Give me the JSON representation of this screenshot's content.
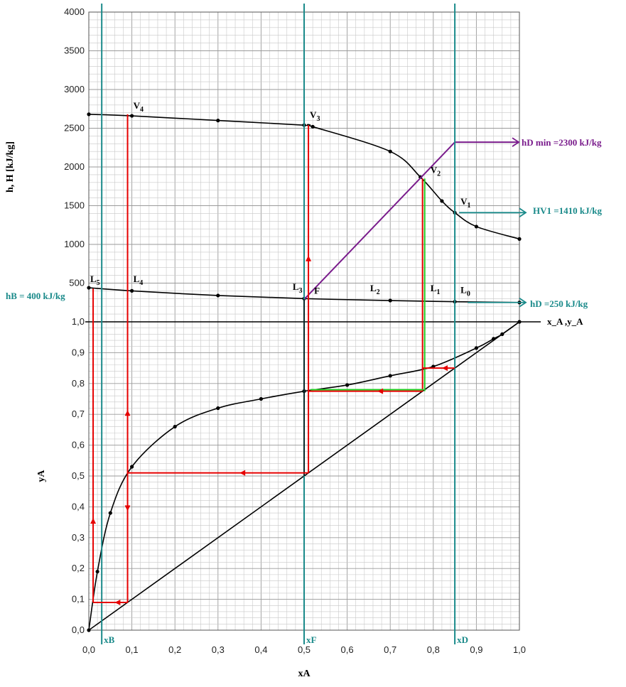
{
  "chart_data": [
    {
      "type": "line",
      "panel": "enthalpy-composition",
      "ylabel": "h, H [kJ/kg]",
      "xlabel": "x_A ,y_A",
      "xlim": [
        0,
        1
      ],
      "ylim": [
        0,
        4000
      ],
      "y_ticks": [
        "500",
        "1000",
        "1500",
        "2000",
        "2500",
        "3000",
        "3500",
        "4000"
      ],
      "grid": true,
      "series": [
        {
          "role": "saturated-vapor",
          "color": "#000000",
          "x": [
            0.0,
            0.1,
            0.3,
            0.5,
            0.52,
            0.7,
            0.77,
            0.82,
            0.85,
            0.9,
            1.0
          ],
          "y": [
            2680,
            2660,
            2600,
            2540,
            2520,
            2200,
            1870,
            1560,
            1410,
            1230,
            1070
          ]
        },
        {
          "role": "saturated-liquid",
          "color": "#000000",
          "x": [
            0.0,
            0.1,
            0.3,
            0.5,
            0.7,
            0.85,
            1.0
          ],
          "y": [
            440,
            400,
            340,
            300,
            275,
            260,
            250
          ]
        }
      ],
      "construction_lines": [
        {
          "color": "#7a1c8c",
          "x": [
            0.5,
            0.85,
            1.0
          ],
          "y": [
            290,
            2320,
            2320
          ]
        },
        {
          "color": "#e60000",
          "x": [
            0.09,
            0.09
          ],
          "y": [
            0,
            2680
          ]
        },
        {
          "color": "#e60000",
          "x": [
            0.51,
            0.51
          ],
          "y": [
            0,
            2540
          ]
        },
        {
          "color": "#e60000",
          "x": [
            0.01,
            0.01
          ],
          "y": [
            0,
            430
          ]
        },
        {
          "color": "#e60000",
          "x": [
            0.775,
            0.775
          ],
          "y": [
            0,
            1850
          ]
        },
        {
          "color": "#22cc22",
          "x": [
            0.777,
            0.777
          ],
          "y": [
            0,
            1850
          ]
        },
        {
          "color": "#000000",
          "x": [
            0.5,
            0.5
          ],
          "y": [
            0,
            290
          ]
        }
      ],
      "point_labels": [
        {
          "text": "V4",
          "x": 0.1,
          "y": 2680
        },
        {
          "text": "V3",
          "x": 0.51,
          "y": 2560
        },
        {
          "text": "V2",
          "x": 0.79,
          "y": 1850
        },
        {
          "text": "V1",
          "x": 0.86,
          "y": 1440
        },
        {
          "text": "L5",
          "x": 0.0,
          "y": 440
        },
        {
          "text": "L4",
          "x": 0.1,
          "y": 440
        },
        {
          "text": "L3",
          "x": 0.47,
          "y": 340
        },
        {
          "text": "F",
          "x": 0.52,
          "y": 290
        },
        {
          "text": "L2",
          "x": 0.65,
          "y": 320
        },
        {
          "text": "L1",
          "x": 0.79,
          "y": 320
        },
        {
          "text": "L0",
          "x": 0.86,
          "y": 300
        }
      ],
      "annotations": [
        {
          "text": "hD min =2300 kJ/kg",
          "color": "#7a1c8c"
        },
        {
          "text": "HV1 =1410 kJ/kg",
          "color": "#1a8a8a"
        },
        {
          "text": "hD =250 kJ/kg",
          "color": "#1a8a8a"
        },
        {
          "text": "hB = 400 kJ/kg",
          "color": "#1a8a8a"
        }
      ]
    },
    {
      "type": "line",
      "panel": "equilibrium-diagram",
      "ylabel": "yA",
      "xlabel": "xA",
      "xlim": [
        0,
        1
      ],
      "ylim": [
        0,
        1
      ],
      "x_ticks": [
        "0,0",
        "0,1",
        "0,2",
        "0,3",
        "0,4",
        "0,5",
        "0,6",
        "0,7",
        "0,8",
        "0,9",
        "1,0"
      ],
      "y_ticks": [
        "0,0",
        "0,1",
        "0,2",
        "0,3",
        "0,4",
        "0,5",
        "0,6",
        "0,7",
        "0,8",
        "0,9",
        "1,0"
      ],
      "grid": true,
      "series": [
        {
          "role": "equilibrium",
          "color": "#000000",
          "x": [
            0.0,
            0.02,
            0.05,
            0.1,
            0.2,
            0.3,
            0.4,
            0.5,
            0.6,
            0.7,
            0.8,
            0.9,
            0.94,
            0.96,
            1.0
          ],
          "y": [
            0.0,
            0.19,
            0.38,
            0.53,
            0.66,
            0.72,
            0.75,
            0.775,
            0.795,
            0.825,
            0.855,
            0.915,
            0.945,
            0.96,
            1.0
          ]
        },
        {
          "role": "diagonal",
          "color": "#000000",
          "x": [
            0.0,
            1.0
          ],
          "y": [
            0.0,
            1.0
          ]
        }
      ],
      "composition_markers": [
        {
          "text": "xB",
          "x": 0.03
        },
        {
          "text": "xF",
          "x": 0.5
        },
        {
          "text": "xD",
          "x": 0.85
        }
      ]
    }
  ],
  "colors": {
    "construction_red": "#e60000",
    "operating_purple": "#7a1c8c",
    "composition_teal": "#1a8a8a",
    "green_line": "#22cc22",
    "grid": "#c8c8c8"
  }
}
